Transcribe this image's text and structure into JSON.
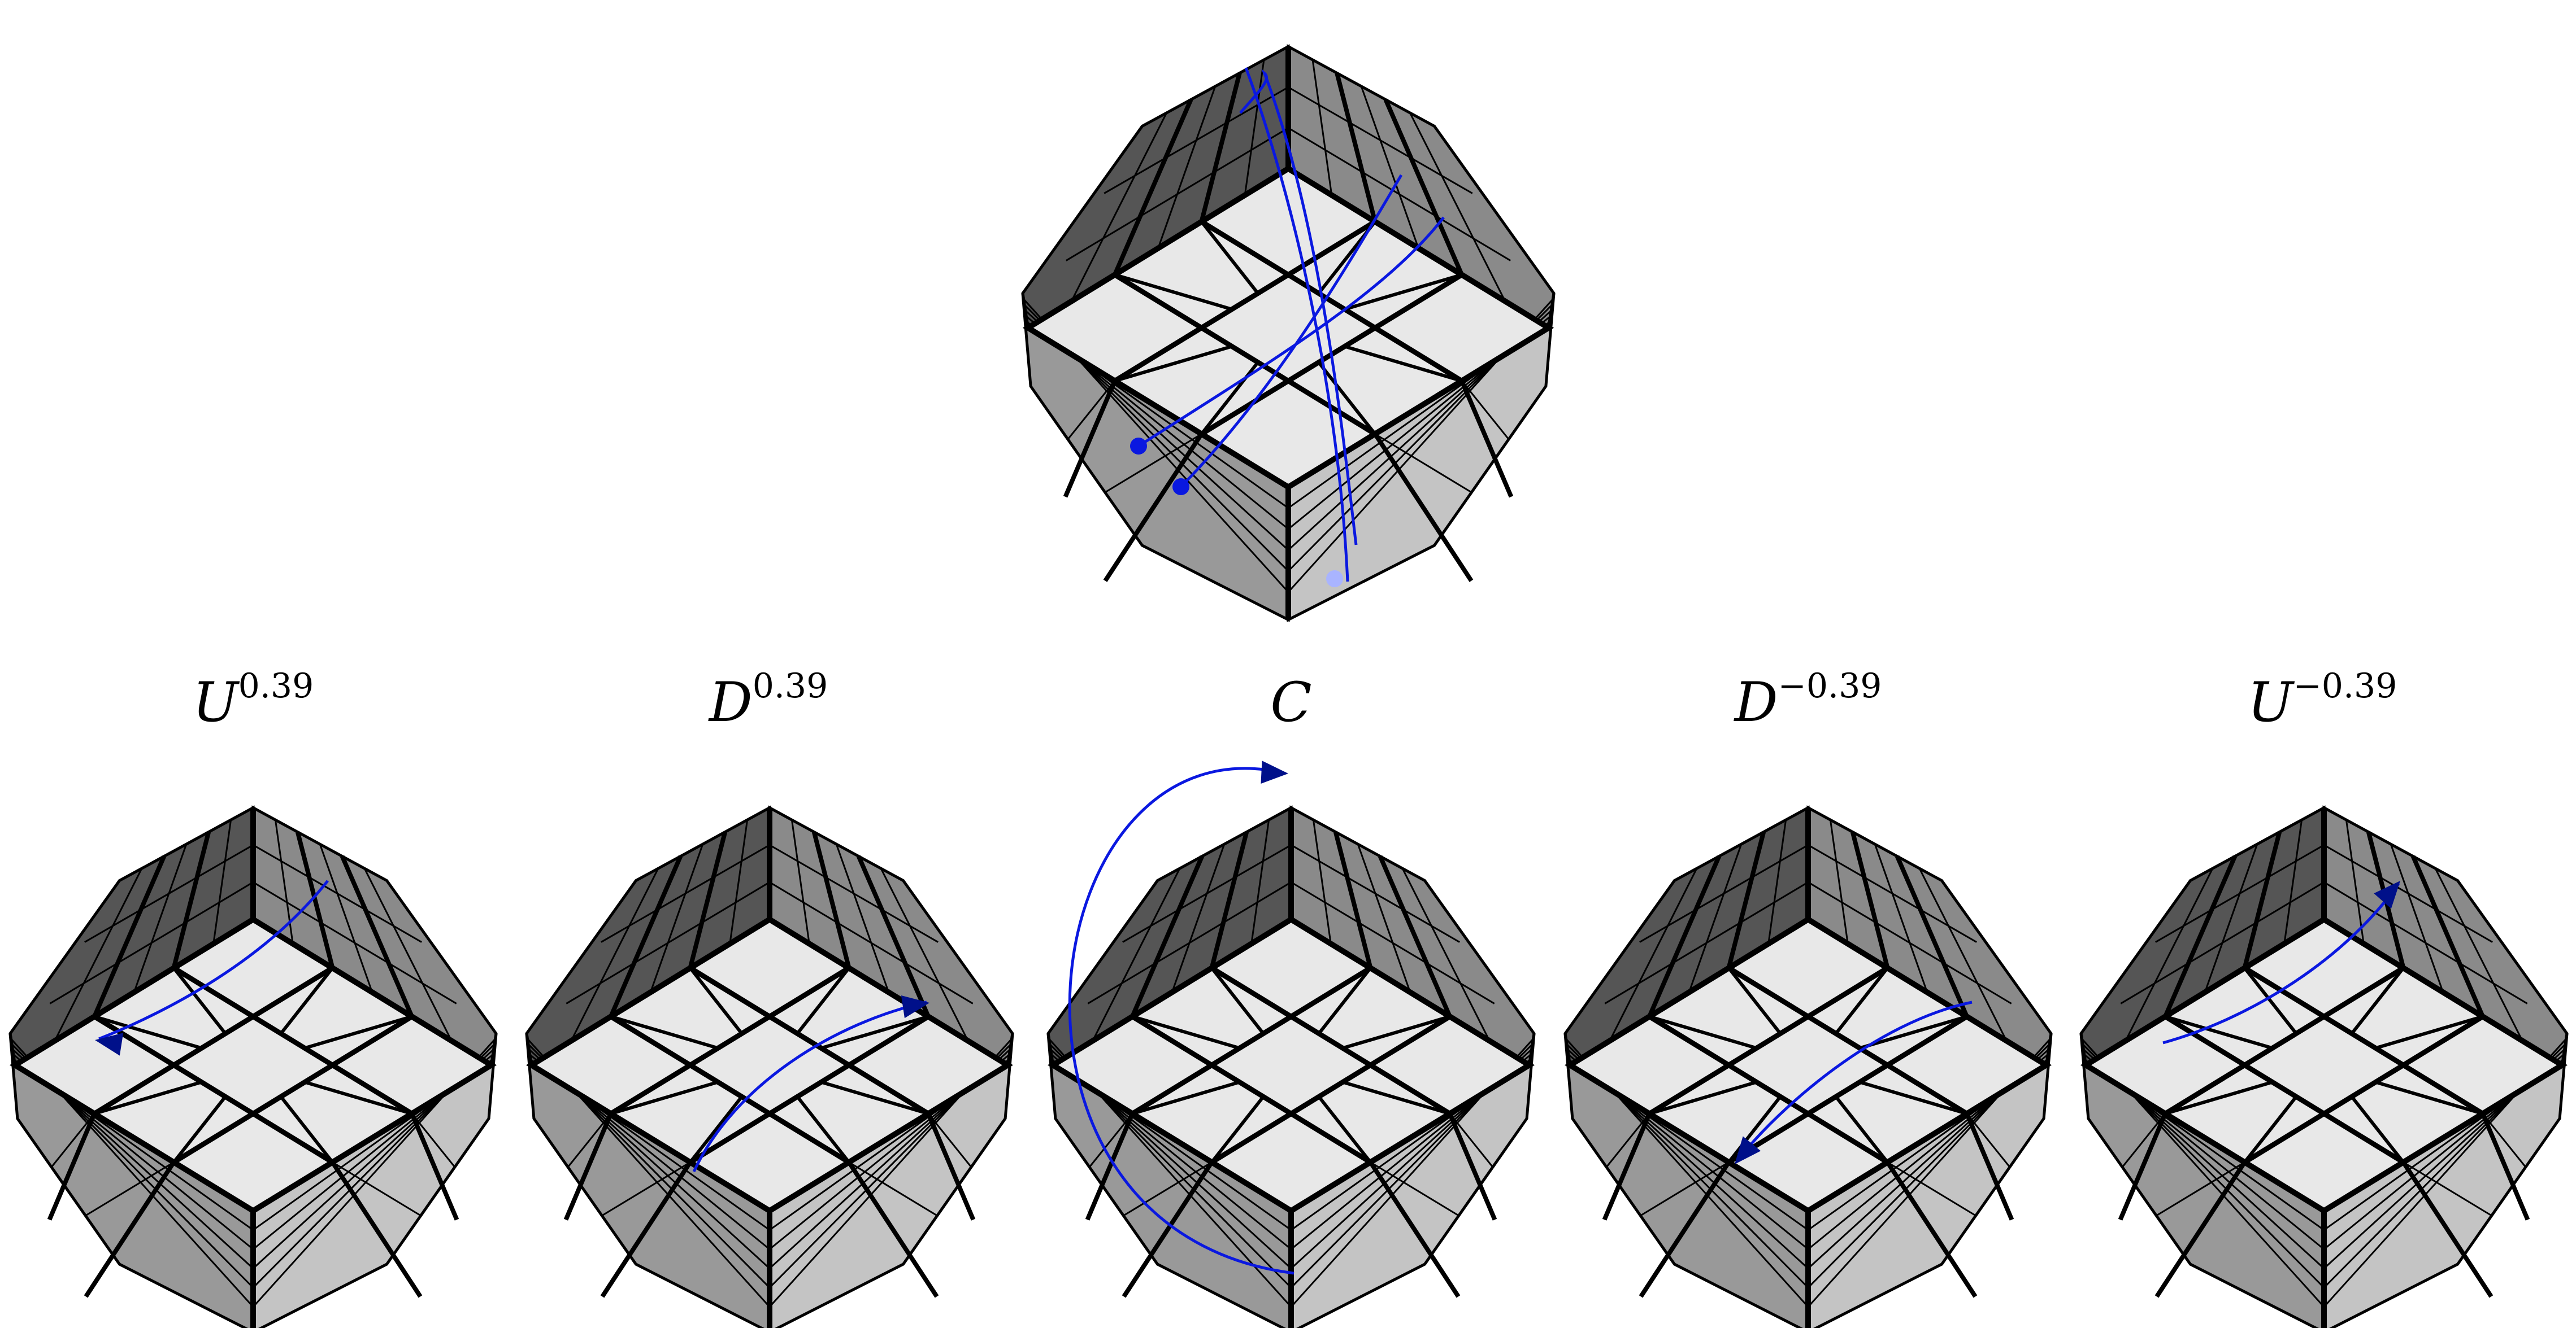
{
  "colors": {
    "face_top": "#e8e8e8",
    "face_left_top": "#555555",
    "face_right_top": "#8a8a8a",
    "face_left_bottom": "#999999",
    "face_right_bottom": "#c4c4c4",
    "edge": "#000000",
    "path": "#0a18e0",
    "path_dark": "#00108a",
    "background": "#ffffff"
  },
  "panels": [
    {
      "id": "main",
      "label_main": "",
      "label_sup": "",
      "path_icons": [
        "two-loop-paths",
        "start-dots"
      ]
    },
    {
      "id": "u-pos",
      "label_main": "U",
      "label_sup": "0.39",
      "path_icons": [
        "arc-arrow-left"
      ]
    },
    {
      "id": "d-pos",
      "label_main": "D",
      "label_sup": "0.39",
      "path_icons": [
        "arc-arrow-right"
      ]
    },
    {
      "id": "c",
      "label_main": "C",
      "label_sup": "",
      "path_icons": [
        "loop-arrow-top"
      ]
    },
    {
      "id": "d-neg",
      "label_main": "D",
      "label_sup": "−0.39",
      "path_icons": [
        "arc-arrow-down-left"
      ]
    },
    {
      "id": "u-neg",
      "label_main": "U",
      "label_sup": "−0.39",
      "path_icons": [
        "arc-arrow-up-right"
      ]
    }
  ]
}
